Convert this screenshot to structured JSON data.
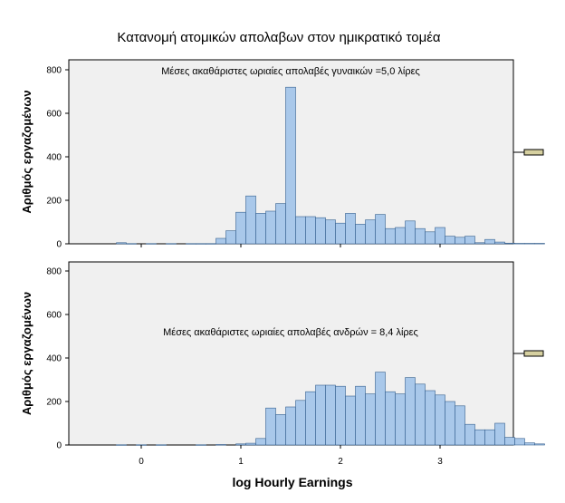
{
  "chart_data": {
    "type": "bar",
    "title": "Κατανομή ατομικών απολαβων στον ημικρατικό τομέα",
    "xlabel": "log Hourly Earnings",
    "x_ticks": [
      "0",
      "1",
      "2",
      "3"
    ],
    "xlim": [
      -0.75,
      3.75
    ],
    "bin_width": 0.1,
    "panels": [
      {
        "ylabel": "Αριθμός εργαζομένων",
        "annotation": "Μέσες ακαθάριστες ωριαίες απολαβές γυναικών =5,0 λίρες",
        "y_ticks": [
          "0",
          "200",
          "400",
          "600",
          "800"
        ],
        "ylim": [
          0,
          830
        ],
        "bins": [
          {
            "x": -0.2,
            "v": 5
          },
          {
            "x": -0.1,
            "v": 1
          },
          {
            "x": 0.1,
            "v": 1
          },
          {
            "x": 0.3,
            "v": 1
          },
          {
            "x": 0.5,
            "v": 1
          },
          {
            "x": 0.6,
            "v": 1
          },
          {
            "x": 0.7,
            "v": 1
          },
          {
            "x": 0.8,
            "v": 25
          },
          {
            "x": 0.9,
            "v": 60
          },
          {
            "x": 1.0,
            "v": 145
          },
          {
            "x": 1.1,
            "v": 220
          },
          {
            "x": 1.2,
            "v": 140
          },
          {
            "x": 1.3,
            "v": 150
          },
          {
            "x": 1.4,
            "v": 185
          },
          {
            "x": 1.5,
            "v": 720
          },
          {
            "x": 1.6,
            "v": 125
          },
          {
            "x": 1.7,
            "v": 125
          },
          {
            "x": 1.8,
            "v": 120
          },
          {
            "x": 1.9,
            "v": 110
          },
          {
            "x": 2.0,
            "v": 95
          },
          {
            "x": 2.1,
            "v": 140
          },
          {
            "x": 2.2,
            "v": 90
          },
          {
            "x": 2.3,
            "v": 110
          },
          {
            "x": 2.4,
            "v": 135
          },
          {
            "x": 2.5,
            "v": 70
          },
          {
            "x": 2.6,
            "v": 75
          },
          {
            "x": 2.7,
            "v": 105
          },
          {
            "x": 2.8,
            "v": 70
          },
          {
            "x": 2.9,
            "v": 55
          },
          {
            "x": 3.0,
            "v": 75
          },
          {
            "x": 3.1,
            "v": 35
          },
          {
            "x": 3.2,
            "v": 30
          },
          {
            "x": 3.3,
            "v": 35
          },
          {
            "x": 3.4,
            "v": 5
          },
          {
            "x": 3.5,
            "v": 20
          },
          {
            "x": 3.6,
            "v": 8
          },
          {
            "x": 3.7,
            "v": 3
          },
          {
            "x": 3.8,
            "v": 2
          },
          {
            "x": 3.9,
            "v": 2
          },
          {
            "x": 4.0,
            "v": 2
          }
        ]
      },
      {
        "ylabel": "Αριθμός εργαζομένων",
        "annotation": "Μέσες ακαθάριστες ωριαίες απολαβές ανδρών = 8,4 λίρες",
        "y_ticks": [
          "0",
          "200",
          "400",
          "600",
          "800"
        ],
        "ylim": [
          0,
          830
        ],
        "bins": [
          {
            "x": -0.2,
            "v": 1
          },
          {
            "x": 0.0,
            "v": 1
          },
          {
            "x": 0.2,
            "v": 1
          },
          {
            "x": 0.6,
            "v": 1
          },
          {
            "x": 0.8,
            "v": 2
          },
          {
            "x": 1.0,
            "v": 5
          },
          {
            "x": 1.1,
            "v": 8
          },
          {
            "x": 1.2,
            "v": 30
          },
          {
            "x": 1.3,
            "v": 170
          },
          {
            "x": 1.4,
            "v": 140
          },
          {
            "x": 1.5,
            "v": 175
          },
          {
            "x": 1.6,
            "v": 205
          },
          {
            "x": 1.7,
            "v": 245
          },
          {
            "x": 1.8,
            "v": 275
          },
          {
            "x": 1.9,
            "v": 275
          },
          {
            "x": 2.0,
            "v": 270
          },
          {
            "x": 2.1,
            "v": 225
          },
          {
            "x": 2.2,
            "v": 270
          },
          {
            "x": 2.3,
            "v": 235
          },
          {
            "x": 2.4,
            "v": 335
          },
          {
            "x": 2.5,
            "v": 245
          },
          {
            "x": 2.6,
            "v": 235
          },
          {
            "x": 2.7,
            "v": 310
          },
          {
            "x": 2.8,
            "v": 280
          },
          {
            "x": 2.9,
            "v": 250
          },
          {
            "x": 3.0,
            "v": 230
          },
          {
            "x": 3.1,
            "v": 200
          },
          {
            "x": 3.2,
            "v": 180
          },
          {
            "x": 3.3,
            "v": 95
          },
          {
            "x": 3.4,
            "v": 70
          },
          {
            "x": 3.5,
            "v": 70
          },
          {
            "x": 3.6,
            "v": 100
          },
          {
            "x": 3.7,
            "v": 35
          },
          {
            "x": 3.8,
            "v": 30
          },
          {
            "x": 3.9,
            "v": 10
          },
          {
            "x": 4.0,
            "v": 5
          }
        ]
      }
    ]
  },
  "colors": {
    "bar_fill": "#a9c8ea",
    "bar_stroke": "#355f8e",
    "panel_bg": "#f0f0f0",
    "handle_fill": "#d6d0a0"
  }
}
